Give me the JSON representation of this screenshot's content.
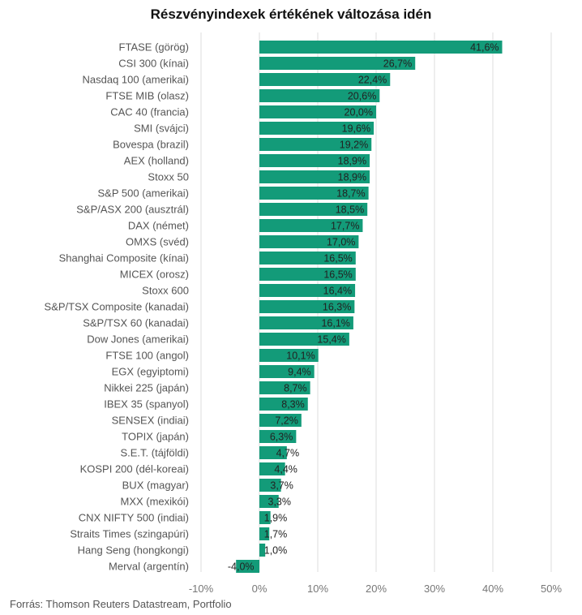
{
  "chart_data": {
    "type": "bar",
    "orientation": "horizontal",
    "title": "Részvényindexek értékének változása idén",
    "source": "Forrás: Thomson Reuters Datastream, Portfolio",
    "categories": [
      "FTASE (görög)",
      "CSI 300 (kínai)",
      "Nasdaq 100 (amerikai)",
      "FTSE MIB (olasz)",
      "CAC 40 (francia)",
      "SMI (svájci)",
      "Bovespa (brazil)",
      "AEX (holland)",
      "Stoxx 50",
      "S&P 500 (amerikai)",
      "S&P/ASX 200 (ausztrál)",
      "DAX (német)",
      "OMXS (svéd)",
      "Shanghai Composite (kínai)",
      "MICEX (orosz)",
      "Stoxx 600",
      "S&P/TSX Composite (kanadai)",
      "S&P/TSX 60 (kanadai)",
      "Dow Jones (amerikai)",
      "FTSE 100 (angol)",
      "EGX (egyiptomi)",
      "Nikkei 225 (japán)",
      "IBEX 35 (spanyol)",
      "SENSEX (indiai)",
      "TOPIX (japán)",
      "S.E.T. (tájföldi)",
      "KOSPI 200 (dél-koreai)",
      "BUX (magyar)",
      "MXX (mexikói)",
      "CNX NIFTY 500 (indiai)",
      "Straits Times (szingapúri)",
      "Hang Seng (hongkongi)",
      "Merval (argentín)"
    ],
    "values": [
      41.6,
      26.7,
      22.4,
      20.6,
      20.0,
      19.6,
      19.2,
      18.9,
      18.9,
      18.7,
      18.5,
      17.7,
      17.0,
      16.5,
      16.5,
      16.4,
      16.3,
      16.1,
      15.4,
      10.1,
      9.4,
      8.7,
      8.3,
      7.2,
      6.3,
      4.7,
      4.4,
      3.7,
      3.3,
      1.9,
      1.7,
      1.0,
      -4.0
    ],
    "value_labels": [
      "41,6%",
      "26,7%",
      "22,4%",
      "20,6%",
      "20,0%",
      "19,6%",
      "19,2%",
      "18,9%",
      "18,9%",
      "18,7%",
      "18,5%",
      "17,7%",
      "17,0%",
      "16,5%",
      "16,5%",
      "16,4%",
      "16,3%",
      "16,1%",
      "15,4%",
      "10,1%",
      "9,4%",
      "8,7%",
      "8,3%",
      "7,2%",
      "6,3%",
      "4,7%",
      "4,4%",
      "3,7%",
      "3,3%",
      "1,9%",
      "1,7%",
      "1,0%",
      "-4,0%"
    ],
    "xlim": [
      -10,
      50
    ],
    "xticks": [
      -10,
      0,
      10,
      20,
      30,
      40,
      50
    ],
    "xtick_labels": [
      "-10%",
      "0%",
      "10%",
      "20%",
      "30%",
      "40%",
      "50%"
    ],
    "grid": true,
    "bar_color": "#139b79"
  }
}
